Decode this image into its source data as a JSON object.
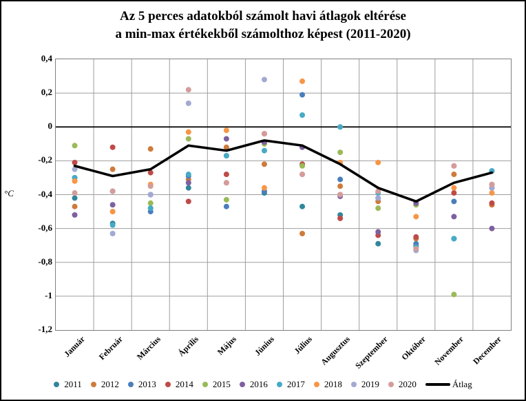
{
  "title": {
    "line1": "Az 5 perces adatokból számolt havi átlagok eltérése",
    "line2": "a min-max értékekből számolthoz képest (2011-2020)"
  },
  "y_axis": {
    "unit": "°C",
    "ticks": [
      "0,4",
      "0,2",
      "0",
      "-0,2",
      "-0,4",
      "-0,6",
      "-0,8",
      "-1",
      "-1,2"
    ],
    "max": 0.4,
    "min": -1.2,
    "step": 0.2
  },
  "chart_data": {
    "type": "scatter",
    "title": "Az 5 perces adatokból számolt havi átlagok eltérése a min-max értékekből számolthoz képest (2011-2020)",
    "ylabel": "°C",
    "ylim": [
      -1.2,
      0.4
    ],
    "grid": true,
    "legend_position": "bottom",
    "categories": [
      "Január",
      "Február",
      "Március",
      "Április",
      "Május",
      "Június",
      "Július",
      "Augusztus",
      "Szeptember",
      "Október",
      "November",
      "December"
    ],
    "series": [
      {
        "name": "2011",
        "color": "#31869B",
        "values": [
          -0.42,
          -0.57,
          -0.48,
          -0.36,
          -0.17,
          -0.39,
          -0.47,
          -0.52,
          -0.69,
          -0.7,
          -0.66,
          -0.26
        ]
      },
      {
        "name": "2012",
        "color": "#CE7B3C",
        "values": [
          -0.47,
          -0.25,
          -0.13,
          -0.31,
          -0.12,
          -0.22,
          -0.63,
          -0.35,
          -0.44,
          -0.66,
          -0.28,
          -0.46
        ]
      },
      {
        "name": "2013",
        "color": "#4A7EBB",
        "values": [
          -0.3,
          -0.38,
          -0.5,
          -0.29,
          -0.47,
          -0.38,
          0.19,
          -0.31,
          -0.42,
          -0.69,
          -0.44,
          -0.36
        ]
      },
      {
        "name": "2014",
        "color": "#BE4B48",
        "values": [
          -0.21,
          -0.12,
          -0.27,
          -0.44,
          -0.28,
          -0.04,
          -0.22,
          -0.54,
          -0.64,
          -0.65,
          -0.39,
          -0.45
        ]
      },
      {
        "name": "2015",
        "color": "#9ABA58",
        "values": [
          -0.11,
          -0.5,
          -0.45,
          -0.07,
          -0.43,
          -0.1,
          -0.23,
          -0.15,
          -0.48,
          -0.46,
          -0.99,
          -0.34
        ]
      },
      {
        "name": "2016",
        "color": "#7D60A0",
        "values": [
          -0.52,
          -0.46,
          -0.4,
          -0.33,
          -0.07,
          -0.09,
          -0.12,
          -0.41,
          -0.62,
          -0.45,
          -0.53,
          -0.6
        ]
      },
      {
        "name": "2017",
        "color": "#47AAC6",
        "values": [
          -0.3,
          -0.58,
          -0.48,
          -0.28,
          -0.17,
          -0.14,
          0.07,
          0.0,
          -0.39,
          -0.71,
          -0.66,
          -0.26
        ]
      },
      {
        "name": "2018",
        "color": "#F79646",
        "values": [
          -0.32,
          -0.5,
          -0.34,
          -0.03,
          -0.02,
          -0.36,
          0.27,
          -0.21,
          -0.21,
          -0.53,
          -0.36,
          -0.39
        ]
      },
      {
        "name": "2019",
        "color": "#A2A9D2",
        "values": [
          -0.25,
          -0.63,
          -0.4,
          0.14,
          -0.33,
          0.28,
          -0.28,
          -0.4,
          -0.42,
          -0.73,
          -0.23,
          -0.36
        ]
      },
      {
        "name": "2020",
        "color": "#D49C9A",
        "values": [
          -0.39,
          -0.38,
          -0.35,
          0.22,
          -0.33,
          -0.04,
          -0.28,
          -0.4,
          -0.38,
          -0.72,
          -0.23,
          -0.34
        ]
      }
    ],
    "average_line": {
      "name": "Átlag",
      "color": "#000000",
      "values": [
        -0.23,
        -0.29,
        -0.25,
        -0.11,
        -0.14,
        -0.08,
        -0.11,
        -0.22,
        -0.36,
        -0.44,
        -0.33,
        -0.27
      ]
    }
  },
  "style": {
    "gridline_color": "#9e9e9e",
    "zero_line_color": "#000000",
    "plot_border_color": "#7f7f7f"
  }
}
